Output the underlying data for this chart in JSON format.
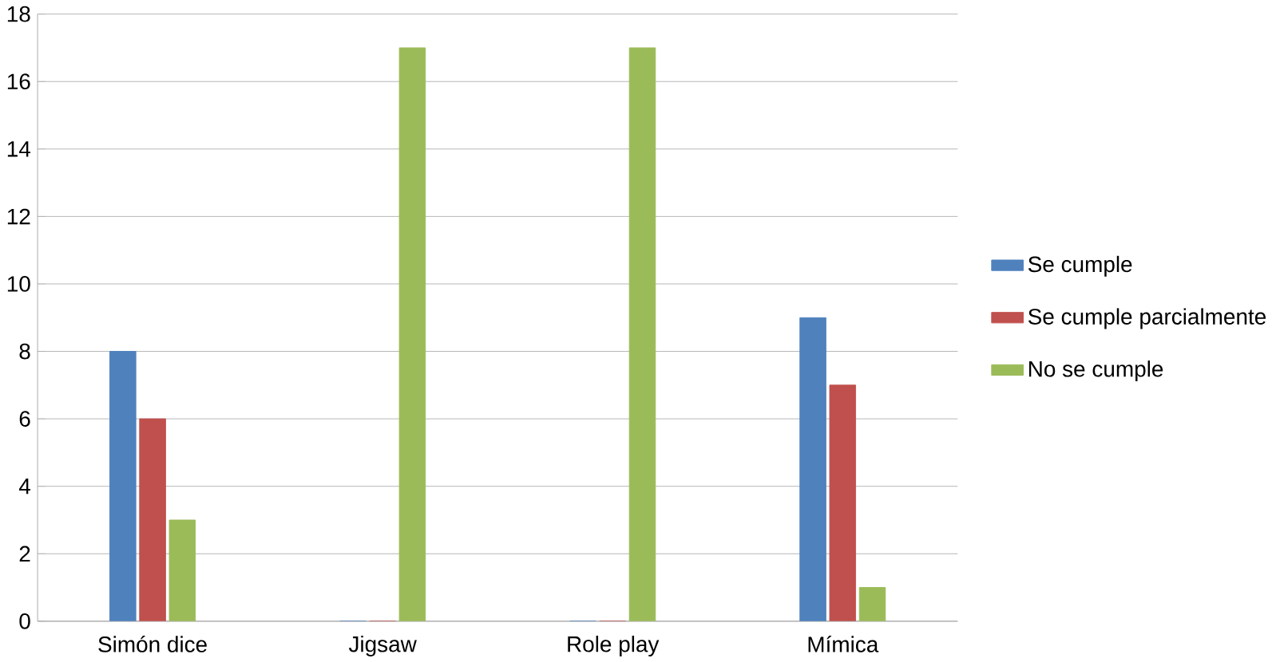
{
  "chart_data": {
    "type": "bar",
    "categories": [
      "Simón dice",
      "Jigsaw",
      "Role play",
      "Mímica"
    ],
    "series": [
      {
        "name": "Se cumple",
        "color": "#4f81bd",
        "values": [
          8,
          0,
          0,
          9
        ]
      },
      {
        "name": "Se cumple parcialmente",
        "color": "#c0504d",
        "values": [
          6,
          0,
          0,
          7
        ]
      },
      {
        "name": "No se cumple",
        "color": "#9bbb59",
        "values": [
          3,
          17,
          17,
          1
        ]
      }
    ],
    "ylim": [
      0,
      18
    ],
    "yticks": [
      0,
      2,
      4,
      6,
      8,
      10,
      12,
      14,
      16,
      18
    ],
    "grid": "y",
    "legend": "right"
  }
}
